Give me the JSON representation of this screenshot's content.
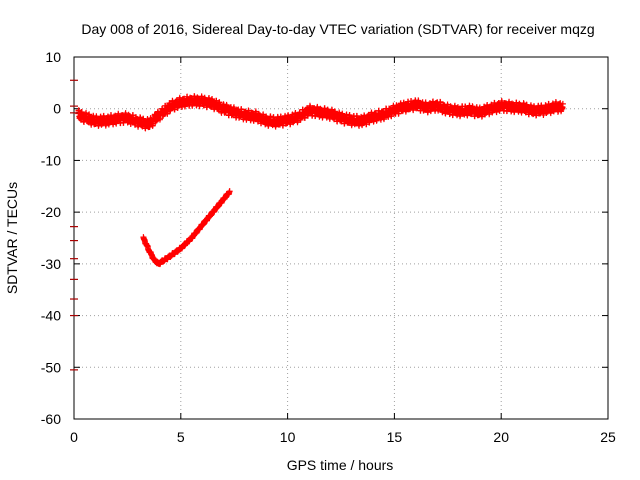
{
  "chart_data": {
    "type": "scatter",
    "title": "Day 008 of 2016, Sidereal Day-to-day VTEC variation (SDTVAR) for receiver mqzg",
    "xlabel": "GPS time / hours",
    "ylabel": "SDTVAR / TECUs",
    "xlim": [
      0,
      25
    ],
    "ylim": [
      -60,
      10
    ],
    "xticks": [
      0,
      5,
      10,
      15,
      20,
      25
    ],
    "yticks": [
      10,
      0,
      -10,
      -20,
      -30,
      -40,
      -50,
      -60
    ],
    "grid": true,
    "legend": "none",
    "marker": "plus",
    "series_color": "#ff0000",
    "edge_marker_color": "#aa0000",
    "series": [
      {
        "name": "main-track",
        "x": [
          0.2,
          0.6,
          1.0,
          1.5,
          2.0,
          2.5,
          3.0,
          3.5,
          4.0,
          4.5,
          5.0,
          5.5,
          6.0,
          6.5,
          7.0,
          7.5,
          8.0,
          8.5,
          9.0,
          9.5,
          10.0,
          10.5,
          11.0,
          11.5,
          12.0,
          12.5,
          13.0,
          13.5,
          14.0,
          14.5,
          15.0,
          15.5,
          16.0,
          16.5,
          17.0,
          17.5,
          18.0,
          18.5,
          19.0,
          19.5,
          20.0,
          20.5,
          21.0,
          21.5,
          22.0,
          22.5,
          22.9
        ],
        "y": [
          -1.2,
          -1.8,
          -2.4,
          -2.3,
          -2.0,
          -1.8,
          -2.5,
          -3.0,
          -1.2,
          0.4,
          1.2,
          1.5,
          1.4,
          1.0,
          0.0,
          -0.7,
          -1.2,
          -1.5,
          -2.3,
          -2.5,
          -2.2,
          -1.6,
          -0.4,
          -0.7,
          -1.0,
          -1.8,
          -2.2,
          -2.4,
          -1.6,
          -1.1,
          -0.3,
          0.4,
          0.8,
          0.2,
          0.6,
          -0.2,
          -0.5,
          -0.3,
          -0.7,
          0.0,
          0.5,
          0.3,
          0.2,
          -0.4,
          -0.2,
          0.3,
          0.4
        ]
      },
      {
        "name": "v-track",
        "x": [
          3.25,
          3.5,
          3.75,
          3.95,
          4.5,
          5.0,
          5.5,
          6.0,
          6.5,
          7.0,
          7.3
        ],
        "y": [
          -25.0,
          -27.3,
          -29.2,
          -30.0,
          -28.5,
          -27.0,
          -25.0,
          -22.5,
          -20.0,
          -17.5,
          -16.0
        ]
      },
      {
        "name": "edge-markers",
        "x": [
          0,
          0,
          0,
          0,
          0,
          0,
          0,
          0,
          0,
          0
        ],
        "y": [
          5.5,
          0.5,
          -0.8,
          -22.8,
          -25.5,
          -29.0,
          -33.0,
          -36.8,
          -40.0,
          -50.5
        ]
      }
    ]
  }
}
